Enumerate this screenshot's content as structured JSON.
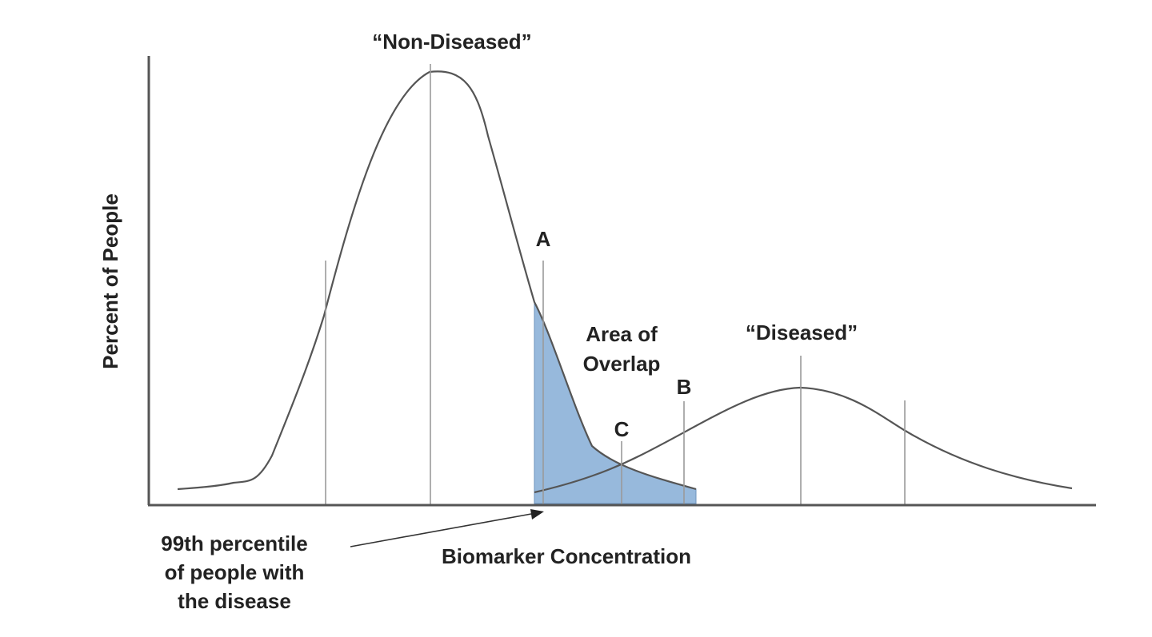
{
  "labels": {
    "non_diseased": "“Non-Diseased”",
    "diseased": "“Diseased”",
    "y_axis": "Percent of People",
    "x_axis": "Biomarker Concentration",
    "point_a": "A",
    "point_b": "B",
    "point_c": "C",
    "overlap_line1": "Area of",
    "overlap_line2": "Overlap",
    "percentile_line1": "99th percentile",
    "percentile_line2": "of people with",
    "percentile_line3": "the disease"
  },
  "colors": {
    "overlap_fill": "#97b9dc",
    "curve": "#555555",
    "marker": "#9a9a9a"
  }
}
